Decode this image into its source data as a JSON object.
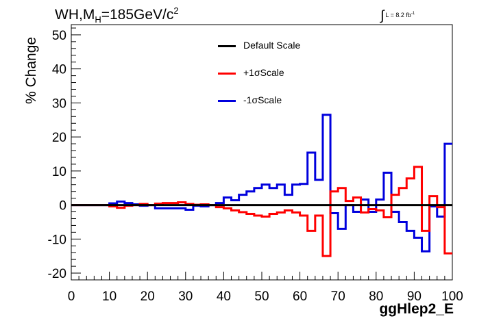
{
  "title": {
    "main": "WH,M",
    "sub": "H",
    "rest": "=185GeV/c",
    "sup": "2"
  },
  "lumi": {
    "integral": "∫",
    "text": "L = 8.2 fb",
    "sup": "-1"
  },
  "chart_data": {
    "type": "line",
    "xlabel": "ggHlep2_E",
    "ylabel": "% Change",
    "xlim": [
      0,
      100
    ],
    "ylim": [
      -22,
      53
    ],
    "xticks": [
      0,
      10,
      20,
      30,
      40,
      50,
      60,
      70,
      80,
      90,
      100
    ],
    "yticks": [
      -20,
      -10,
      0,
      10,
      20,
      30,
      40,
      50
    ],
    "legend_position": "top-center",
    "grid": false,
    "bin_edges": [
      0,
      2,
      4,
      6,
      8,
      10,
      12,
      14,
      16,
      18,
      20,
      22,
      24,
      26,
      28,
      30,
      32,
      34,
      36,
      38,
      40,
      42,
      44,
      46,
      48,
      50,
      52,
      54,
      56,
      58,
      60,
      62,
      64,
      66,
      68,
      70,
      72,
      74,
      76,
      78,
      80,
      82,
      84,
      86,
      88,
      90,
      92,
      94,
      96,
      98,
      100
    ],
    "series": [
      {
        "name": "Default Scale",
        "color": "#000000",
        "values": [
          0,
          0,
          0,
          0,
          0,
          0,
          0,
          0,
          0,
          0,
          0,
          0,
          0,
          0,
          0,
          0,
          0,
          0,
          0,
          0,
          0,
          0,
          0,
          0,
          0,
          0,
          0,
          0,
          0,
          0,
          0,
          0,
          0,
          0,
          0,
          0,
          0,
          0,
          0,
          0,
          0,
          0,
          0,
          0,
          0,
          0,
          0,
          0,
          0,
          0
        ]
      },
      {
        "name": "+1σScale",
        "color": "#ff0000",
        "values": [
          0,
          0,
          0,
          0,
          0,
          -0.4,
          -0.8,
          -0.2,
          0,
          0.3,
          0,
          0.4,
          0.6,
          0.6,
          0.8,
          0.3,
          0.1,
          0.2,
          0,
          -0.6,
          -1.0,
          -1.6,
          -2.1,
          -2.6,
          -3.1,
          -3.4,
          -2.6,
          -2.2,
          -1.6,
          -2.2,
          -3.1,
          -7.6,
          -3.1,
          -15.0,
          4.0,
          5.0,
          1.2,
          2.2,
          -2.2,
          -1.2,
          -1.6,
          -3.6,
          3.0,
          5.0,
          7.8,
          11.2,
          -7.6,
          2.6,
          -0.6,
          -14.2
        ]
      },
      {
        "name": "-1σScale",
        "color": "#0000dd",
        "values": [
          0,
          0,
          0,
          0,
          0,
          0.5,
          1.0,
          0.6,
          0.2,
          -0.2,
          0,
          -1.0,
          -1.0,
          -1.0,
          -1.0,
          -1.4,
          -0.2,
          -0.4,
          0,
          0.6,
          2.2,
          1.4,
          3.0,
          4.0,
          5.0,
          6.0,
          5.0,
          6.0,
          3.0,
          6.0,
          6.2,
          15.4,
          7.4,
          26.5,
          -2.4,
          -7.0,
          0,
          -2.0,
          1.6,
          -2.0,
          1.6,
          9.5,
          -2.0,
          -5.0,
          -7.6,
          -9.6,
          -13.6,
          -0.4,
          -3.4,
          18.0
        ]
      }
    ]
  }
}
